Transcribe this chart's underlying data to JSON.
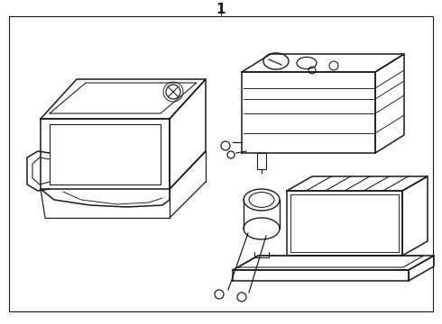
{
  "title_number": "1",
  "background_color": "#ffffff",
  "line_color": "#1a1a1a",
  "line_width": 1.1,
  "fig_width": 4.9,
  "fig_height": 3.6,
  "dpi": 100,
  "border_color": "#1a1a1a",
  "border_lw": 0.8
}
